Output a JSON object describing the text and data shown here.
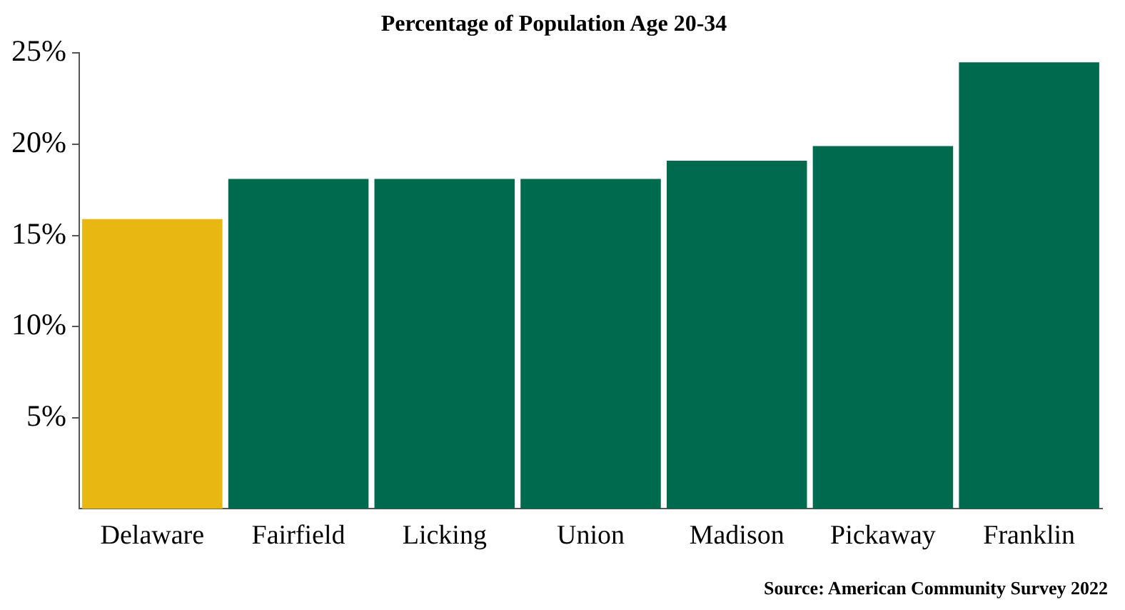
{
  "chart_data": {
    "type": "bar",
    "title": "Percentage of Population Age 20-34",
    "categories": [
      "Delaware",
      "Fairfield",
      "Licking",
      "Union",
      "Madison",
      "Pickaway",
      "Franklin"
    ],
    "values": [
      15.9,
      18.1,
      18.1,
      18.1,
      19.1,
      19.9,
      24.5
    ],
    "colors": [
      "#e9b712",
      "#006a4e",
      "#006a4e",
      "#006a4e",
      "#006a4e",
      "#006a4e",
      "#006a4e"
    ],
    "ylim": [
      0,
      25
    ],
    "yticks": [
      {
        "value": 5,
        "label": "5%"
      },
      {
        "value": 10,
        "label": "10%"
      },
      {
        "value": 15,
        "label": "15%"
      },
      {
        "value": 20,
        "label": "20%"
      },
      {
        "value": 25,
        "label": "25%"
      }
    ],
    "grid": false,
    "legend": false,
    "annotations": [
      "Source: American Community Survey 2022"
    ]
  }
}
